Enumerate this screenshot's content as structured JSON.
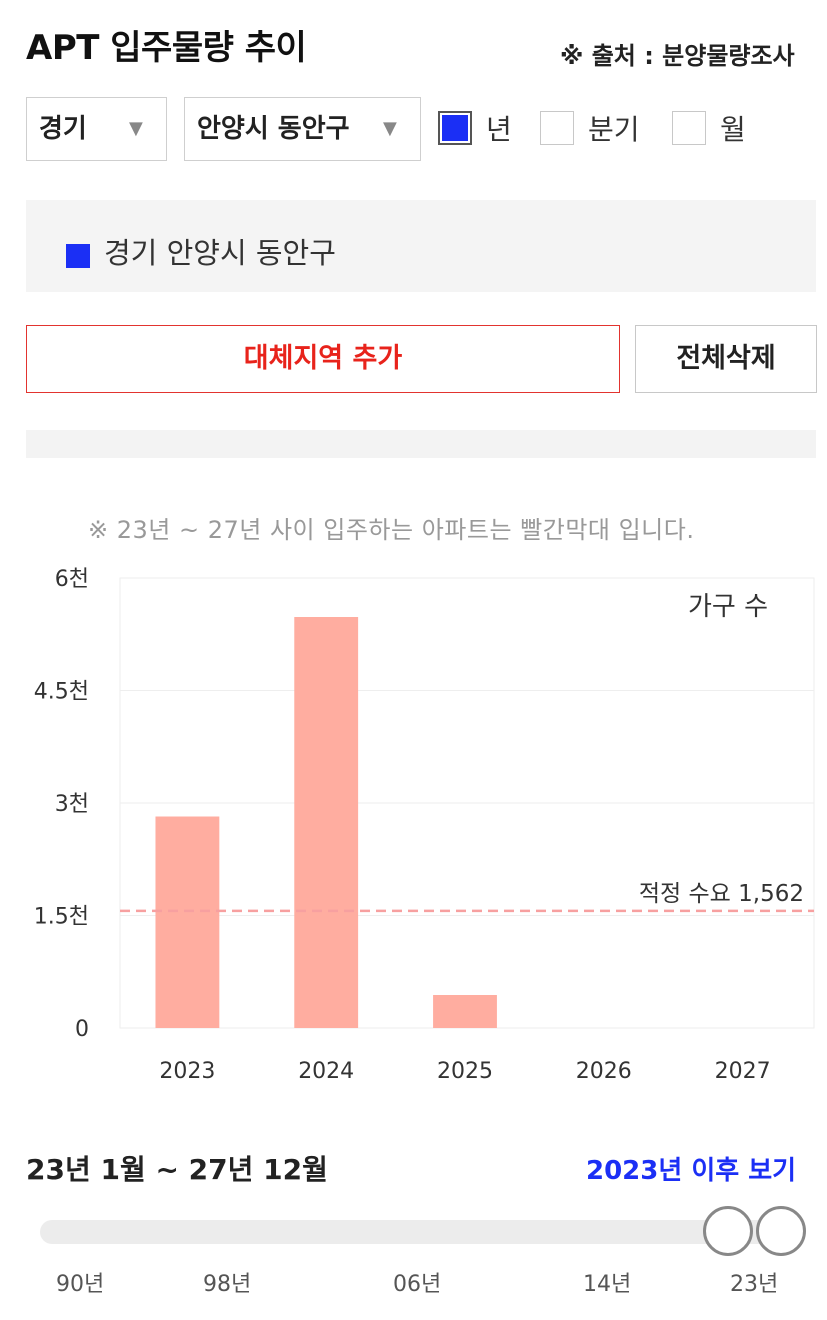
{
  "header": {
    "title": "APT 입주물량 추이",
    "source": "※ 출처 : 분양물량조사"
  },
  "filters": {
    "province": "경기",
    "district": "안양시 동안구",
    "periods": [
      {
        "label": "년",
        "checked": true
      },
      {
        "label": "분기",
        "checked": false
      },
      {
        "label": "월",
        "checked": false
      }
    ]
  },
  "legend": {
    "label": "경기 안양시 동안구",
    "color": "#1b2ff5"
  },
  "buttons": {
    "add_region": "대체지역 추가",
    "clear_all": "전체삭제"
  },
  "chart_note": "※ 23년 ~ 27년 사이 입주하는 아파트는 빨간막대 입니다.",
  "chart_data": {
    "type": "bar",
    "categories": [
      "2023",
      "2024",
      "2025",
      "2026",
      "2027"
    ],
    "values": [
      2820,
      5480,
      440,
      0,
      0
    ],
    "ylim": [
      0,
      6000
    ],
    "y_ticks": [
      {
        "value": 0,
        "label": "0"
      },
      {
        "value": 1500,
        "label": "1.5천"
      },
      {
        "value": 3000,
        "label": "3천"
      },
      {
        "value": 4500,
        "label": "4.5천"
      },
      {
        "value": 6000,
        "label": "6천"
      }
    ],
    "series_label": "가구 수",
    "reference_line": {
      "value": 1562,
      "label": "적정 수요 1,562"
    },
    "bar_color": "#ffada0",
    "reference_color": "#f7a0a0",
    "grid": true
  },
  "range": {
    "label": "23년 1월 ~ 27년 12월",
    "link": "2023년 이후 보기",
    "slider_ticks": [
      "90년",
      "98년",
      "06년",
      "14년",
      "23년"
    ]
  }
}
